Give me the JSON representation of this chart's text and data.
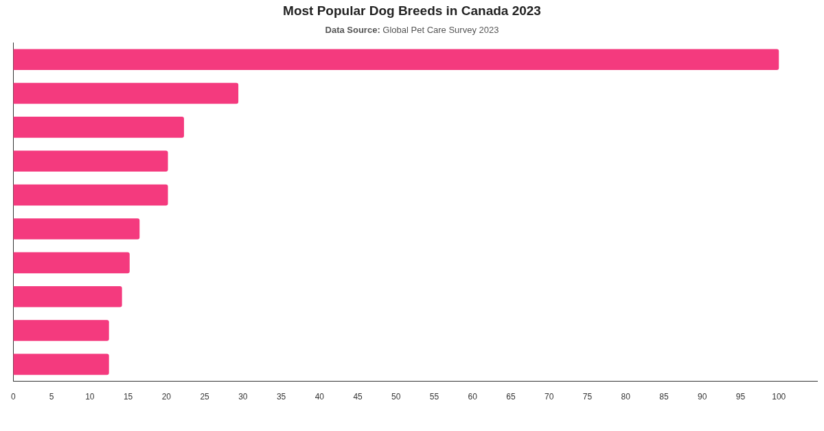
{
  "chart_data": {
    "type": "bar",
    "title": "Most Popular Dog Breeds in Canada 2023",
    "subtitle": "Data Source: Global Pet Care Survey 2023",
    "categories": [
      null,
      null,
      null,
      null,
      null,
      null,
      null,
      null,
      null,
      null
    ],
    "values": [
      100,
      29.4,
      22.3,
      20.2,
      20.2,
      16.5,
      15.2,
      14.2,
      12.5,
      12.5
    ],
    "color": "#f43a7e",
    "orientation": "horizontal",
    "tick_labels": "x",
    "xlim": [
      0,
      105
    ],
    "xticks": [
      0,
      5,
      10,
      15,
      20,
      25,
      30,
      35,
      40,
      45,
      50,
      55,
      60,
      65,
      70,
      75,
      80,
      85,
      90,
      95,
      100
    ]
  }
}
